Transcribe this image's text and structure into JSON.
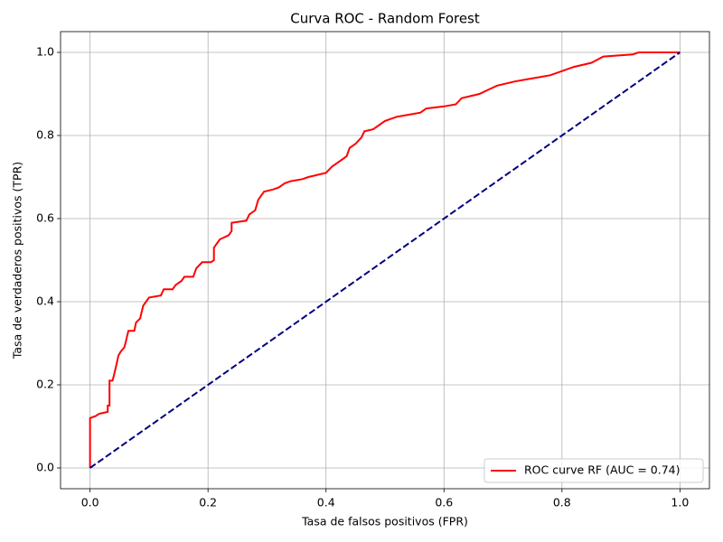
{
  "chart_data": {
    "type": "line",
    "title": "Curva ROC - Random Forest",
    "xlabel": "Tasa de falsos positivos (FPR)",
    "ylabel": "Tasa de verdaderos positivos (TPR)",
    "xlim": [
      -0.05,
      1.05
    ],
    "ylim": [
      -0.05,
      1.05
    ],
    "xticks": [
      {
        "value": 0,
        "label": "0.0"
      },
      0.2,
      0.4,
      0.6,
      0.8,
      {
        "value": 1,
        "label": "1.0"
      }
    ],
    "yticks": [
      {
        "value": 0,
        "label": "0.0"
      },
      0.2,
      0.4,
      0.6,
      0.8,
      {
        "value": 1,
        "label": "1.0"
      }
    ],
    "grid": true,
    "legend": "lower right",
    "series": [
      {
        "name": "ROC curve RF (AUC = 0.74)",
        "color": "#ff0000",
        "linestyle": "solid",
        "x": [
          0,
          0,
          0.01,
          0.015,
          0.03,
          0.03,
          0.033,
          0.033,
          0.038,
          0.04,
          0.045,
          0.048,
          0.052,
          0.058,
          0.06,
          0.065,
          0.075,
          0.078,
          0.085,
          0.09,
          0.095,
          0.1,
          0.12,
          0.125,
          0.14,
          0.145,
          0.155,
          0.16,
          0.175,
          0.18,
          0.19,
          0.205,
          0.21,
          0.21,
          0.215,
          0.22,
          0.235,
          0.24,
          0.24,
          0.265,
          0.27,
          0.28,
          0.285,
          0.29,
          0.295,
          0.31,
          0.32,
          0.33,
          0.34,
          0.36,
          0.37,
          0.4,
          0.41,
          0.42,
          0.435,
          0.44,
          0.45,
          0.46,
          0.465,
          0.48,
          0.49,
          0.5,
          0.51,
          0.52,
          0.54,
          0.56,
          0.57,
          0.6,
          0.62,
          0.63,
          0.66,
          0.675,
          0.69,
          0.72,
          0.74,
          0.76,
          0.78,
          0.82,
          0.85,
          0.87,
          0.92,
          0.93,
          1.0
        ],
        "values": [
          0,
          0.12,
          0.125,
          0.13,
          0.135,
          0.15,
          0.15,
          0.21,
          0.21,
          0.22,
          0.25,
          0.27,
          0.28,
          0.29,
          0.3,
          0.33,
          0.33,
          0.35,
          0.36,
          0.39,
          0.4,
          0.41,
          0.415,
          0.43,
          0.43,
          0.44,
          0.45,
          0.46,
          0.46,
          0.48,
          0.495,
          0.495,
          0.5,
          0.53,
          0.54,
          0.55,
          0.56,
          0.57,
          0.59,
          0.595,
          0.61,
          0.62,
          0.645,
          0.655,
          0.665,
          0.67,
          0.675,
          0.685,
          0.69,
          0.695,
          0.7,
          0.71,
          0.725,
          0.735,
          0.75,
          0.77,
          0.78,
          0.795,
          0.81,
          0.815,
          0.825,
          0.835,
          0.84,
          0.845,
          0.85,
          0.855,
          0.865,
          0.87,
          0.875,
          0.89,
          0.9,
          0.91,
          0.92,
          0.93,
          0.935,
          0.94,
          0.945,
          0.965,
          0.975,
          0.99,
          0.995,
          1.0,
          1.0
        ]
      },
      {
        "color": "#000080",
        "linestyle": "dashed",
        "x": [
          0,
          1
        ],
        "values": [
          0,
          1
        ]
      }
    ]
  }
}
